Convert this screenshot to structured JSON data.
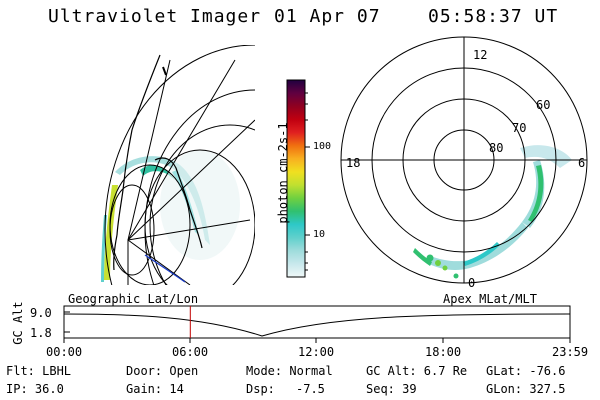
{
  "header": {
    "instrument": "Ultraviolet Imager",
    "date": "01 Apr 07",
    "time": "05:58:37 UT"
  },
  "colorbar": {
    "label": "photon cm-2s-1",
    "ticks": [
      "100",
      "10"
    ],
    "stops": [
      "#f0f8f8",
      "#c8e8ec",
      "#9fdcdc",
      "#60d0cc",
      "#2ec8c8",
      "#30c070",
      "#70d040",
      "#c0e030",
      "#f0e020",
      "#f8b020",
      "#f07010",
      "#e02020",
      "#c00010",
      "#900020",
      "#600040",
      "#200040"
    ]
  },
  "geo_map": {
    "label": "Geographic Lat/Lon"
  },
  "polar_map": {
    "label": "Apex MLat/MLT",
    "mlt_labels": {
      "top": "12",
      "left": "18",
      "right": "6",
      "bottom": "0"
    },
    "lat_labels": [
      "60",
      "70",
      "80"
    ]
  },
  "timeline": {
    "y_axis_label": "GC Alt",
    "y_ticks": [
      "9.0",
      "1.8"
    ],
    "x_ticks": [
      "00:00",
      "06:00",
      "12:00",
      "18:00",
      "23:59"
    ],
    "current_time_fraction": 0.2496
  },
  "info": {
    "filter": "Flt: LBHL",
    "ip": "IP: 36.0",
    "door": "Door: Open",
    "gain": "Gain: 14",
    "mode": "Mode: Normal",
    "dsp_label": "Dsp:",
    "dsp_value": "-7.5",
    "gc_alt": "GC Alt: 6.7 Re",
    "seq": "Seq: 39",
    "glat": "GLat: -76.6",
    "glon": "GLon: 327.5"
  }
}
